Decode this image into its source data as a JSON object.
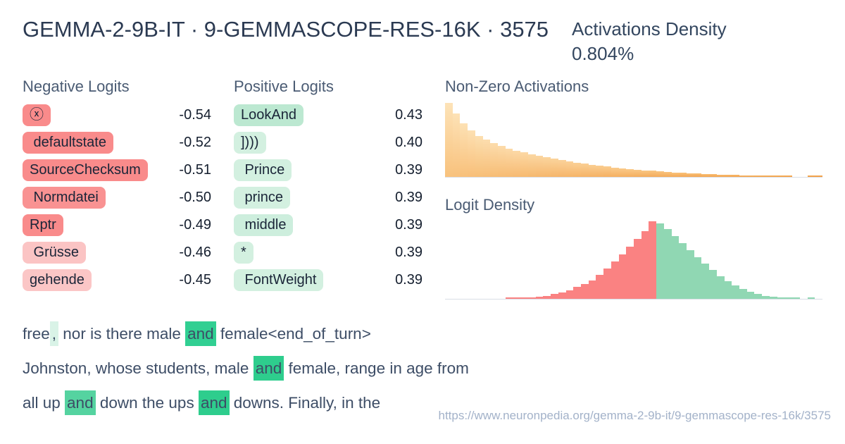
{
  "header": {
    "title": "GEMMA-2-9B-IT · 9-GEMMASCOPE-RES-16K · 3575",
    "density_label": "Activations Density",
    "density_value": "0.804%"
  },
  "negative_logits": {
    "heading": "Negative Logits",
    "items": [
      {
        "token": "ⓧ",
        "value": "-0.54",
        "bg": "#f98b8b"
      },
      {
        "token": " defaultstate",
        "value": "-0.52",
        "bg": "#f98b8b"
      },
      {
        "token": "SourceChecksum",
        "value": "-0.51",
        "bg": "#f98b8b"
      },
      {
        "token": " Normdatei",
        "value": "-0.50",
        "bg": "#f99292"
      },
      {
        "token": "Rptr",
        "value": "-0.49",
        "bg": "#f98b8b"
      },
      {
        "token": " Grüsse",
        "value": "-0.46",
        "bg": "#fbc4c4"
      },
      {
        "token": "gehende",
        "value": "-0.45",
        "bg": "#fbc6c6"
      }
    ]
  },
  "positive_logits": {
    "heading": "Positive Logits",
    "items": [
      {
        "token": "LookAnd",
        "value": "0.43",
        "bg": "#bce8d1"
      },
      {
        "token": "])))",
        "value": "0.40",
        "bg": "#d3f0e0"
      },
      {
        "token": " Prince",
        "value": "0.39",
        "bg": "#d3f0e0"
      },
      {
        "token": " prince",
        "value": "0.39",
        "bg": "#d3f0e0"
      },
      {
        "token": " middle",
        "value": "0.39",
        "bg": "#cdeedd"
      },
      {
        "token": "*",
        "value": "0.39",
        "bg": "#d3f0e0"
      },
      {
        "token": " FontWeight",
        "value": "0.39",
        "bg": "#d3f0e0"
      }
    ]
  },
  "chart_data": [
    {
      "type": "bar",
      "title": "Non-Zero Activations",
      "ylim": [
        0,
        1
      ],
      "grid": false,
      "values": [
        1.0,
        0.86,
        0.72,
        0.63,
        0.555,
        0.5,
        0.455,
        0.415,
        0.385,
        0.355,
        0.33,
        0.305,
        0.285,
        0.265,
        0.245,
        0.225,
        0.21,
        0.195,
        0.18,
        0.165,
        0.15,
        0.14,
        0.128,
        0.117,
        0.107,
        0.098,
        0.089,
        0.081,
        0.074,
        0.067,
        0.061,
        0.055,
        0.05,
        0.045,
        0.04,
        0.036,
        0.032,
        0.029,
        0.026,
        0.023,
        0.021,
        0.019,
        0.017,
        0.015,
        0.014,
        0.012,
        0,
        0,
        0.012,
        0.012
      ],
      "color_top_start": "#fde3b8",
      "color_top_end": "#f6ad55",
      "color_bottom_start": "#f8c27d",
      "color_bottom_end": "#f1993f",
      "baseline_color": "#d9dee6",
      "note": "right-skewed decay histogram, heights normalized to max bar"
    },
    {
      "type": "bar",
      "title": "Logit Density",
      "ylim": [
        0,
        1
      ],
      "grid": false,
      "values": [
        0,
        0,
        0,
        0,
        0,
        0,
        0,
        0,
        0.01,
        0.02,
        0.015,
        0.02,
        0.03,
        0.04,
        0.06,
        0.08,
        0.11,
        0.15,
        0.19,
        0.24,
        0.31,
        0.39,
        0.48,
        0.57,
        0.67,
        0.77,
        0.87,
        1.0,
        0.97,
        0.9,
        0.81,
        0.72,
        0.63,
        0.54,
        0.45,
        0.37,
        0.295,
        0.23,
        0.17,
        0.125,
        0.09,
        0.06,
        0.04,
        0.025,
        0.02,
        0.012,
        0.01,
        0,
        0.008,
        0
      ],
      "split_index": 28,
      "neg_color": "#fa8282",
      "pos_color": "#90d7b3",
      "baseline_color": "#d9dee6",
      "note": "bell-shaped density, red bars = negative logits (left of split), green = positive"
    }
  ],
  "samples": {
    "lines": [
      {
        "tokens": [
          {
            "text": "free",
            "hl": null
          },
          {
            "text": ",",
            "hl": "#d9f3e7"
          },
          {
            "text": " nor is there male ",
            "hl": null
          },
          {
            "text": "and",
            "hl": "#31cf92"
          },
          {
            "text": " female<end_of_turn>",
            "hl": null
          }
        ]
      },
      {
        "tokens": [
          {
            "text": "Johnston, whose students, male ",
            "hl": null
          },
          {
            "text": "and",
            "hl": "#2ecd8d"
          },
          {
            "text": " female, range in age from",
            "hl": null
          }
        ]
      },
      {
        "tokens": [
          {
            "text": "all up ",
            "hl": null
          },
          {
            "text": "and",
            "hl": "#55d3a0"
          },
          {
            "text": " down the ups ",
            "hl": null
          },
          {
            "text": "and",
            "hl": "#2ecd8d"
          },
          {
            "text": " downs. Finally, in the",
            "hl": null
          }
        ]
      }
    ]
  },
  "footer": {
    "url": "https://www.neuronpedia.org/gemma-2-9b-it/9-gemmascope-res-16k/3575"
  }
}
